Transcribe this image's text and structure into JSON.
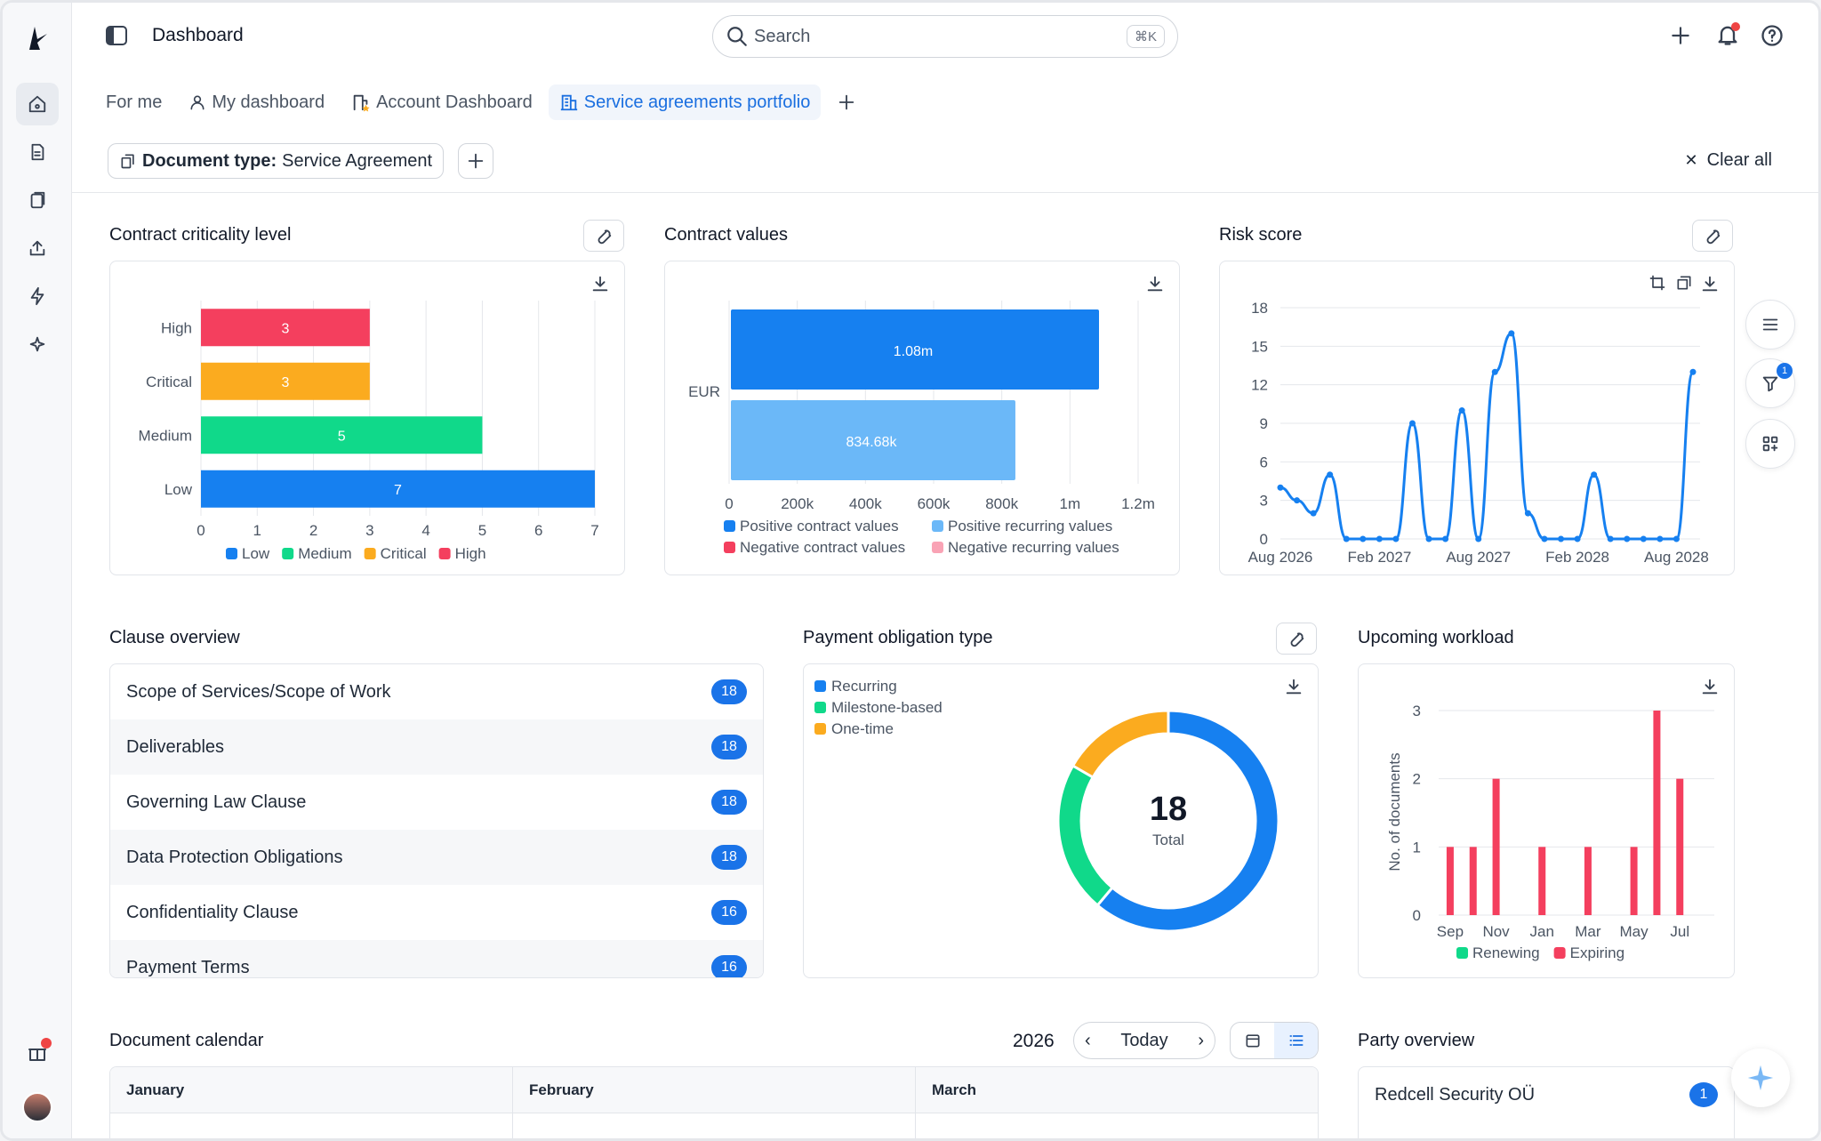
{
  "header": {
    "title": "Dashboard",
    "search_placeholder": "Search",
    "search_shortcut": "⌘K"
  },
  "tabs": [
    {
      "label": "For me",
      "icon": "none"
    },
    {
      "label": "My dashboard",
      "icon": "user-icon"
    },
    {
      "label": "Account Dashboard",
      "icon": "building-star-icon"
    },
    {
      "label": "Service agreements portfolio",
      "icon": "building-icon",
      "active": true
    }
  ],
  "filters": {
    "chip_key": "Document type:",
    "chip_value": "Service Agreement",
    "clear_all": "Clear all"
  },
  "criticality": {
    "title": "Contract criticality level",
    "chart_data": {
      "type": "bar",
      "orientation": "horizontal",
      "categories": [
        "High",
        "Critical",
        "Medium",
        "Low"
      ],
      "values": [
        3,
        3,
        5,
        7
      ],
      "colors": [
        "#f43f5e",
        "#fbab1f",
        "#10d98a",
        "#1680f0"
      ],
      "xlim": [
        0,
        7
      ],
      "xticks": [
        "0",
        "1",
        "2",
        "3",
        "4",
        "5",
        "6",
        "7"
      ],
      "legend": [
        "Low",
        "Medium",
        "Critical",
        "High"
      ],
      "legend_colors": [
        "#1680f0",
        "#10d98a",
        "#fbab1f",
        "#f43f5e"
      ]
    }
  },
  "contract_values": {
    "title": "Contract values",
    "chart_data": {
      "type": "bar",
      "orientation": "horizontal",
      "category": "EUR",
      "series": [
        {
          "name": "Positive contract values",
          "value": 1080000,
          "label": "1.08m",
          "color": "#1680f0"
        },
        {
          "name": "Positive recurring values",
          "value": 834680,
          "label": "834.68k",
          "color": "#6bb8f8"
        }
      ],
      "xlim": [
        0,
        1200000
      ],
      "xticks": [
        "0",
        "200k",
        "400k",
        "600k",
        "800k",
        "1m",
        "1.2m"
      ],
      "legend": [
        "Positive contract values",
        "Positive recurring values",
        "Negative contract values",
        "Negative recurring values"
      ],
      "legend_colors": [
        "#1680f0",
        "#6bb8f8",
        "#f43f5e",
        "#f9a3b5"
      ]
    }
  },
  "risk": {
    "title": "Risk score",
    "chart_data": {
      "type": "line",
      "ylim": [
        0,
        18
      ],
      "yticks": [
        "0",
        "3",
        "6",
        "9",
        "12",
        "15",
        "18"
      ],
      "xticks": [
        "Aug 2026",
        "Feb 2027",
        "Aug 2027",
        "Feb 2028",
        "Aug 2028"
      ],
      "x": [
        "Aug 2026",
        "Sep 2026",
        "Oct 2026",
        "Nov 2026",
        "Dec 2026",
        "Jan 2027",
        "Feb 2027",
        "Mar 2027",
        "Apr 2027",
        "May 2027",
        "Jun 2027",
        "Jul 2027",
        "Aug 2027",
        "Sep 2027",
        "Oct 2027",
        "Nov 2027",
        "Dec 2027",
        "Jan 2028",
        "Feb 2028",
        "Mar 2028",
        "Apr 2028",
        "May 2028",
        "Jun 2028",
        "Jul 2028",
        "Aug 2028",
        "Sep 2028"
      ],
      "values": [
        4,
        3,
        2,
        5,
        0,
        0,
        0,
        0,
        9,
        0,
        0,
        10,
        0,
        13,
        16,
        2,
        0,
        0,
        0,
        5,
        0,
        0,
        0,
        0,
        0,
        13
      ],
      "color": "#1680f0"
    }
  },
  "clauses": {
    "title": "Clause overview",
    "items": [
      {
        "label": "Scope of Services/Scope of Work",
        "count": "18"
      },
      {
        "label": "Deliverables",
        "count": "18"
      },
      {
        "label": "Governing Law Clause",
        "count": "18"
      },
      {
        "label": "Data Protection Obligations",
        "count": "18"
      },
      {
        "label": "Confidentiality Clause",
        "count": "16"
      },
      {
        "label": "Payment Terms",
        "count": "16"
      }
    ]
  },
  "payment": {
    "title": "Payment obligation type",
    "chart_data": {
      "type": "pie",
      "labels": [
        "Recurring",
        "Milestone-based",
        "One-time"
      ],
      "values": [
        11,
        4,
        3
      ],
      "colors": [
        "#1680f0",
        "#10d98a",
        "#fbab1f"
      ],
      "total": "18",
      "total_label": "Total"
    }
  },
  "workload": {
    "title": "Upcoming workload",
    "chart_data": {
      "type": "bar",
      "ylabel": "No. of documents",
      "ylim": [
        0,
        3
      ],
      "yticks": [
        "0",
        "1",
        "2",
        "3"
      ],
      "xticks": [
        "Sep",
        "Nov",
        "Jan",
        "Mar",
        "May",
        "Jul"
      ],
      "categories": [
        "Sep",
        "Oct",
        "Nov",
        "Dec",
        "Jan",
        "Feb",
        "Mar",
        "Apr",
        "May",
        "Jun",
        "Jul",
        "Aug"
      ],
      "series": [
        {
          "name": "Renewing",
          "values": [
            0,
            0,
            0,
            0,
            0,
            0,
            0,
            0,
            0,
            0,
            0,
            0
          ],
          "color": "#10d98a"
        },
        {
          "name": "Expiring",
          "values": [
            1,
            1,
            2,
            0,
            1,
            0,
            1,
            0,
            1,
            3,
            2,
            0
          ],
          "color": "#f43f5e"
        }
      ]
    }
  },
  "calendar": {
    "title": "Document calendar",
    "year": "2026",
    "today": "Today",
    "months": [
      "January",
      "February",
      "March"
    ]
  },
  "party": {
    "title": "Party overview",
    "items": [
      {
        "label": "Redcell Security OÜ",
        "count": "1"
      }
    ]
  }
}
